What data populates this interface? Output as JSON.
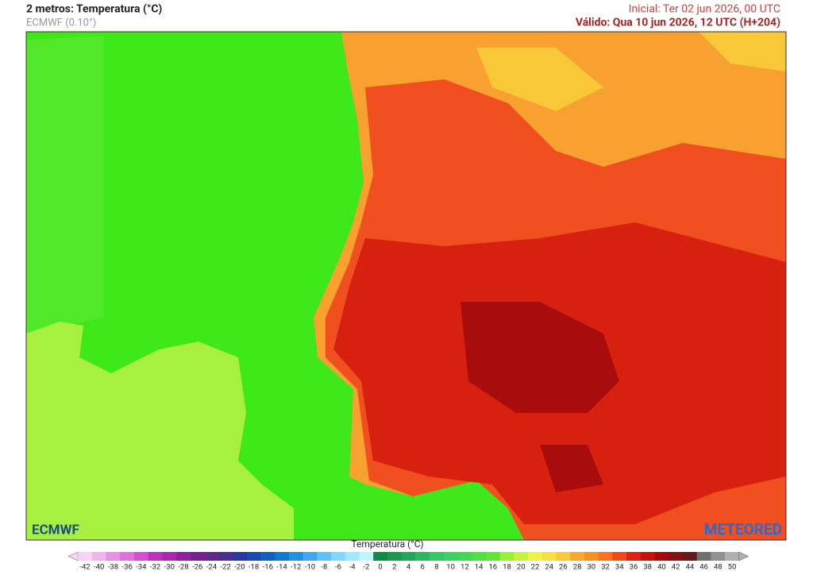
{
  "header": {
    "title": "2 metros: Temperatura (°C)",
    "model": "ECMWF (0.10°)",
    "initial": "Inicial: Ter 02 jun 2026, 00 UTC",
    "valid": "Válido: Qua 10 jun 2026, 12 UTC (H+204)"
  },
  "logos": {
    "left": "ECMWF",
    "right": "METEORED"
  },
  "legend": {
    "title": "Temperatura (°C)",
    "ticks": [
      -42,
      -40,
      -38,
      -36,
      -34,
      -32,
      -30,
      -28,
      -26,
      -24,
      -22,
      -20,
      -18,
      -16,
      -14,
      -12,
      -10,
      -8,
      -6,
      -4,
      -2,
      0,
      2,
      4,
      6,
      8,
      10,
      12,
      14,
      16,
      18,
      20,
      22,
      24,
      26,
      28,
      30,
      32,
      34,
      36,
      38,
      40,
      42,
      44,
      46,
      48,
      50
    ],
    "colors": [
      "#f7d4f4",
      "#f0b4ec",
      "#e890e4",
      "#e070dc",
      "#d450d0",
      "#c030c0",
      "#a828b0",
      "#9020a0",
      "#782090",
      "#602888",
      "#483090",
      "#2838a0",
      "#1848b0",
      "#1060c0",
      "#1078d0",
      "#2090e0",
      "#40a8f0",
      "#60c0f8",
      "#80d8ff",
      "#a0e8ff",
      "#c0f4ff",
      "#108848",
      "#189850",
      "#20a858",
      "#28b860",
      "#30c868",
      "#38d060",
      "#40d850",
      "#50e040",
      "#60e830",
      "#98f038",
      "#c8f040",
      "#f0f048",
      "#f8e040",
      "#f8c838",
      "#f8a830",
      "#f89028",
      "#f87020",
      "#f04818",
      "#e02010",
      "#c81010",
      "#a80808",
      "#881010",
      "#681818",
      "#707070",
      "#909090",
      "#b0b0b0"
    ]
  }
}
